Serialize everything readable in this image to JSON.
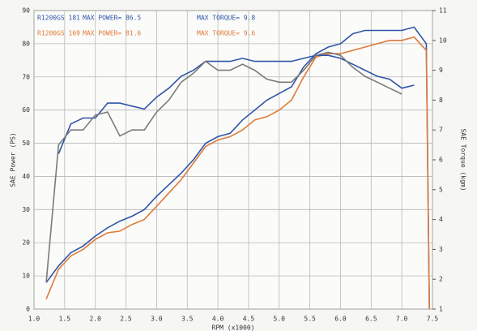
{
  "chart_data": {
    "type": "line",
    "xlabel": "RPM (x1000)",
    "ylabel": "SAE Power (PS)",
    "y2label": "SAE Torque (kgm)",
    "legend": [
      {
        "name": "R1200GS 181",
        "power": "MAX POWER= 86.5",
        "torque": "MAX TORQUE= 9.8",
        "color": "#2f55a8"
      },
      {
        "name": "R1200GS 169",
        "power": "MAX POWER= 81.6",
        "torque": "MAX TORQUE= 9.6",
        "color": "#e07a3a"
      }
    ],
    "x": [
      1.2,
      1.4,
      1.6,
      1.8,
      2.0,
      2.2,
      2.4,
      2.6,
      2.8,
      3.0,
      3.2,
      3.4,
      3.6,
      3.8,
      4.0,
      4.2,
      4.4,
      4.6,
      4.8,
      5.0,
      5.2,
      5.4,
      5.6,
      5.8,
      6.0,
      6.2,
      6.4,
      6.6,
      6.8,
      7.0,
      7.2,
      7.4,
      7.45
    ],
    "series": [
      {
        "color": "#2f55a8",
        "values": [
          8,
          13,
          17,
          19,
          22,
          24.5,
          26.5,
          28,
          30,
          34,
          37.5,
          41,
          45,
          50,
          52,
          53,
          57,
          60,
          63,
          65,
          67,
          73,
          77,
          79,
          80,
          83,
          84,
          84,
          84,
          84,
          85,
          80,
          0
        ]
      },
      {
        "color": "#e07a3a",
        "values": [
          3,
          12,
          16,
          18,
          21,
          23,
          23.5,
          25.5,
          27,
          31,
          35,
          39,
          44,
          49,
          51,
          52,
          54,
          57,
          58,
          60,
          63,
          70,
          76,
          77,
          77,
          78,
          79,
          80,
          81,
          81,
          82,
          78,
          0
        ]
      },
      {
        "color": "#2f55a8",
        "axis": "y2",
        "values": [
          null,
          6.2,
          7.2,
          7.4,
          7.4,
          7.9,
          7.9,
          7.8,
          7.7,
          8.1,
          8.4,
          8.8,
          9.0,
          9.3,
          9.3,
          9.3,
          9.4,
          9.3,
          9.3,
          9.3,
          9.3,
          9.4,
          9.5,
          9.5,
          9.4,
          9.2,
          9.0,
          8.8,
          8.7,
          8.4,
          8.5,
          null,
          null
        ]
      },
      {
        "color": "#7a7a7a",
        "axis": "y2",
        "values": [
          1.9,
          6.5,
          7.0,
          7.0,
          7.5,
          7.6,
          6.8,
          7.0,
          7.0,
          7.6,
          8.0,
          8.6,
          8.9,
          9.3,
          9.0,
          9.0,
          9.2,
          9.0,
          8.7,
          8.6,
          8.6,
          9.0,
          9.5,
          9.6,
          9.5,
          9.1,
          8.8,
          8.6,
          8.4,
          8.2,
          null,
          null,
          null
        ]
      }
    ],
    "xlim": [
      1,
      7.5
    ],
    "xticks": [
      {
        "value": 1,
        "label": "1.0"
      },
      1.5,
      {
        "value": 2,
        "label": "2.0"
      },
      2.5,
      {
        "value": 3,
        "label": "3.0"
      },
      3.5,
      {
        "value": 4,
        "label": "4.0"
      },
      4.5,
      {
        "value": 5,
        "label": "5.0"
      },
      5.5,
      {
        "value": 6,
        "label": "6.0"
      },
      6.5,
      {
        "value": 7,
        "label": "7.0"
      },
      7.5
    ],
    "ylim": [
      0,
      90
    ],
    "yticks": [
      0,
      10,
      20,
      30,
      40,
      50,
      60,
      70,
      80,
      90
    ],
    "y2lim": [
      1,
      11
    ],
    "y2ticks": [
      1,
      2,
      3,
      4,
      5,
      6,
      7,
      8,
      9,
      10,
      11
    ],
    "grid": true
  }
}
